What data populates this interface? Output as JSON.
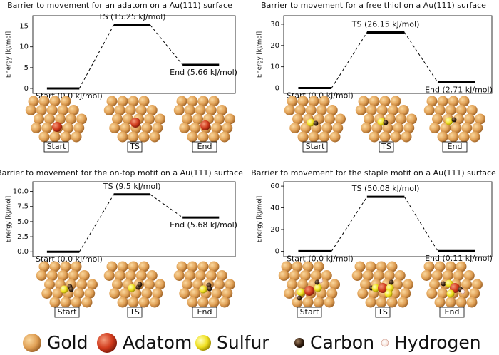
{
  "chart_data": [
    {
      "type": "line",
      "title": "Barrier to movement for an adatom on a Au(111) surface",
      "ylabel": "Energy [kJ/mol]",
      "categories": [
        "Start",
        "TS",
        "End"
      ],
      "values": [
        0.0,
        15.25,
        5.66
      ],
      "value_labels": [
        "Start (0.0 kJ/mol)",
        "TS (15.25 kJ/mol)",
        "End (5.66 kJ/mol)"
      ],
      "ylim": [
        -1.2,
        17.5
      ],
      "yticks": [
        0,
        5,
        10,
        15
      ],
      "color": "#000000"
    },
    {
      "type": "line",
      "title": "Barrier to movement for a free thiol on a Au(111) surface",
      "ylabel": "Energy [kJ/mol]",
      "categories": [
        "Start",
        "TS",
        "End"
      ],
      "values": [
        0.0,
        26.15,
        2.71
      ],
      "value_labels": [
        "Start (0.0 kJ/mol)",
        "TS (26.15 kJ/mol)",
        "End (2.71 kJ/mol)"
      ],
      "ylim": [
        -2.5,
        34
      ],
      "yticks": [
        0,
        10,
        20,
        30
      ],
      "color": "#000000"
    },
    {
      "type": "line",
      "title": "Barrier to movement for the on-top motif on a Au(111) surface",
      "ylabel": "Energy [kJ/mol]",
      "categories": [
        "Start",
        "TS",
        "End"
      ],
      "values": [
        0.0,
        9.5,
        5.68
      ],
      "value_labels": [
        "Start (0.0 kJ/mol)",
        "TS (9.5 kJ/mol)",
        "End (5.68 kJ/mol)"
      ],
      "ylim": [
        -0.8,
        11.6
      ],
      "yticks": [
        {
          "value": 0,
          "label": "0.0"
        },
        {
          "value": 2.5,
          "label": "2.5"
        },
        {
          "value": 5,
          "label": "5.0"
        },
        {
          "value": 7.5,
          "label": "7.5"
        },
        {
          "value": 10,
          "label": "10.0"
        }
      ],
      "color": "#000000"
    },
    {
      "type": "line",
      "title": "Barrier to movement for the staple motif on a Au(111) surface",
      "ylabel": "Energy [kJ/mol]",
      "categories": [
        "Start",
        "TS",
        "End"
      ],
      "values": [
        0.0,
        50.08,
        0.11
      ],
      "value_labels": [
        "Start (0.0 kJ/mol)",
        "TS (50.08 kJ/mol)",
        "End (0.11 kJ/mol)"
      ],
      "ylim": [
        -5,
        64
      ],
      "yticks": [
        0,
        20,
        40,
        60
      ],
      "color": "#000000"
    }
  ],
  "legend": [
    "Gold",
    "Adatom",
    "Sulfur",
    "Carbon",
    "Hydrogen"
  ]
}
